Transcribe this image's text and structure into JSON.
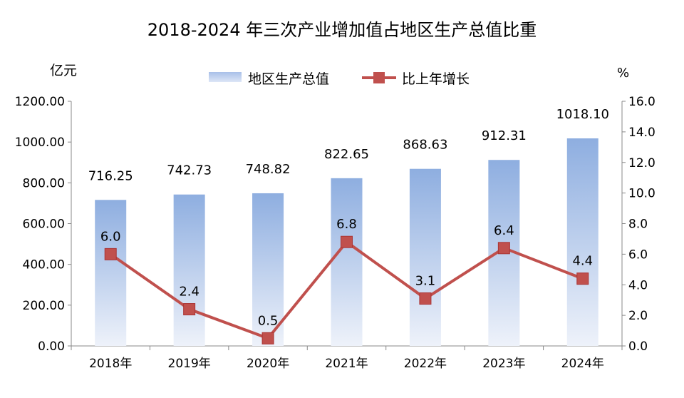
{
  "chart_data": {
    "type": "bar",
    "title": "2018-2024 年三次产业增加值占地区生产总值比重",
    "categories": [
      "2018年",
      "2019年",
      "2020年",
      "2021年",
      "2022年",
      "2023年",
      "2024年"
    ],
    "series": [
      {
        "name": "地区生产总值",
        "type": "bar",
        "axis": "left",
        "values": [
          716.25,
          742.73,
          748.82,
          822.65,
          868.63,
          912.31,
          1018.1
        ],
        "labels": [
          "716.25",
          "742.73",
          "748.82",
          "822.65",
          "868.63",
          "912.31",
          "1018.10"
        ],
        "color": "#8eaee0"
      },
      {
        "name": "比上年增长",
        "type": "line",
        "axis": "right",
        "values": [
          6.0,
          2.4,
          0.5,
          6.8,
          3.1,
          6.4,
          4.4
        ],
        "labels": [
          "6.0",
          "2.4",
          "0.5",
          "6.8",
          "3.1",
          "6.4",
          "4.4"
        ],
        "color": "#c0504d"
      }
    ],
    "ylabel": "亿元",
    "y2label": "%",
    "ylim": [
      0,
      1200
    ],
    "y2lim": [
      0,
      16
    ],
    "yticks": [
      "0.00",
      "200.00",
      "400.00",
      "600.00",
      "800.00",
      "1000.00",
      "1200.00"
    ],
    "y2ticks": [
      "0.0",
      "2.0",
      "4.0",
      "6.0",
      "8.0",
      "10.0",
      "12.0",
      "14.0",
      "16.0"
    ],
    "legend": "top-center",
    "grid": false
  }
}
